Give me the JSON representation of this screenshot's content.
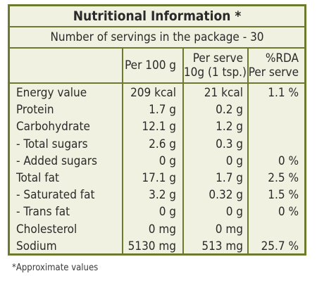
{
  "title": "Nutritional Information *",
  "servings": "Number of servings in the package - 30",
  "headers": {
    "per100": "Per 100 g",
    "serve_line1": "Per serve",
    "serve_line2": "10g (1 tsp.)",
    "rda_line1": "%RDA",
    "rda_line2": "Per serve"
  },
  "rows": [
    {
      "name": "Energy value",
      "per100": "209 kcal",
      "serve": "21 kcal",
      "rda": "1.1 %"
    },
    {
      "name": "Protein",
      "per100": "1.7 g",
      "serve": "0.2 g",
      "rda": ""
    },
    {
      "name": "Carbohydrate",
      "per100": "12.1 g",
      "serve": "1.2 g",
      "rda": ""
    },
    {
      "name": " - Total sugars",
      "per100": "2.6 g",
      "serve": "0.3 g",
      "rda": ""
    },
    {
      "name": " - Added sugars",
      "per100": "0 g",
      "serve": "0 g",
      "rda": "0 %"
    },
    {
      "name": "Total fat",
      "per100": "17.1 g",
      "serve": "1.7 g",
      "rda": "2.5 %"
    },
    {
      "name": " - Saturated fat",
      "per100": "3.2 g",
      "serve": "0.32 g",
      "rda": "1.5 %"
    },
    {
      "name": " - Trans fat",
      "per100": "0 g",
      "serve": "0 g",
      "rda": "0 %"
    },
    {
      "name": "Cholesterol",
      "per100": "0 mg",
      "serve": "0 mg",
      "rda": ""
    },
    {
      "name": "Sodium",
      "per100": "5130 mg",
      "serve": "513 mg",
      "rda": "25.7 %"
    }
  ],
  "footnote": "*Approximate values",
  "colors": {
    "border": "#6b7a2f",
    "background": "#f1f1e1"
  }
}
